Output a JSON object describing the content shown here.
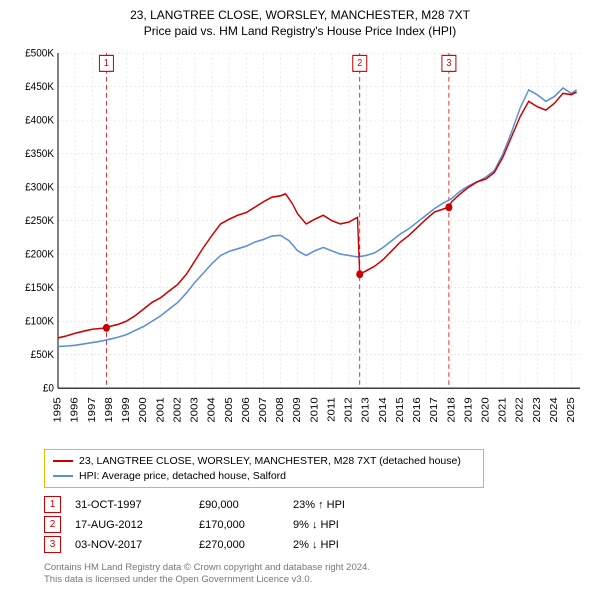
{
  "titles": {
    "line1": "23, LANGTREE CLOSE, WORSLEY, MANCHESTER, M28 7XT",
    "line2": "Price paid vs. HM Land Registry's House Price Index (HPI)"
  },
  "chart": {
    "type": "line",
    "background_color": "#ffffff",
    "grid_color": "#dcdcdc",
    "axis_color": "#000000",
    "label_color": "#000000",
    "font_size_axis": 10,
    "y": {
      "min": 0,
      "max": 500000,
      "step": 50000,
      "ticks": [
        "£0",
        "£50K",
        "£100K",
        "£150K",
        "£200K",
        "£250K",
        "£300K",
        "£350K",
        "£400K",
        "£450K",
        "£500K"
      ]
    },
    "x": {
      "min": 1995,
      "max": 2025.5,
      "step": 1,
      "ticks": [
        "1995",
        "1996",
        "1997",
        "1998",
        "1999",
        "2000",
        "2001",
        "2002",
        "2003",
        "2004",
        "2005",
        "2006",
        "2007",
        "2008",
        "2009",
        "2010",
        "2011",
        "2012",
        "2013",
        "2014",
        "2015",
        "2016",
        "2017",
        "2018",
        "2019",
        "2020",
        "2021",
        "2022",
        "2023",
        "2024",
        "2025"
      ]
    },
    "series": [
      {
        "id": "price_paid",
        "label": "23, LANGTREE CLOSE, WORSLEY, MANCHESTER, M28 7XT (detached house)",
        "color": "#cc0000",
        "line_width": 1.4,
        "points": [
          [
            1995.0,
            75000
          ],
          [
            1995.5,
            78000
          ],
          [
            1996.0,
            82000
          ],
          [
            1996.5,
            85000
          ],
          [
            1997.0,
            88000
          ],
          [
            1997.83,
            90000
          ],
          [
            1998.0,
            92000
          ],
          [
            1998.5,
            95000
          ],
          [
            1999.0,
            100000
          ],
          [
            1999.5,
            108000
          ],
          [
            2000.0,
            118000
          ],
          [
            2000.5,
            128000
          ],
          [
            2001.0,
            135000
          ],
          [
            2001.5,
            145000
          ],
          [
            2002.0,
            155000
          ],
          [
            2002.5,
            170000
          ],
          [
            2003.0,
            190000
          ],
          [
            2003.5,
            210000
          ],
          [
            2004.0,
            228000
          ],
          [
            2004.5,
            245000
          ],
          [
            2005.0,
            252000
          ],
          [
            2005.5,
            258000
          ],
          [
            2006.0,
            262000
          ],
          [
            2006.5,
            270000
          ],
          [
            2007.0,
            278000
          ],
          [
            2007.5,
            285000
          ],
          [
            2008.0,
            287000
          ],
          [
            2008.3,
            290000
          ],
          [
            2008.7,
            275000
          ],
          [
            2009.0,
            260000
          ],
          [
            2009.5,
            245000
          ],
          [
            2010.0,
            252000
          ],
          [
            2010.5,
            258000
          ],
          [
            2011.0,
            250000
          ],
          [
            2011.5,
            245000
          ],
          [
            2012.0,
            248000
          ],
          [
            2012.5,
            255000
          ],
          [
            2012.63,
            170000
          ],
          [
            2013.0,
            175000
          ],
          [
            2013.5,
            182000
          ],
          [
            2014.0,
            192000
          ],
          [
            2014.5,
            205000
          ],
          [
            2015.0,
            218000
          ],
          [
            2015.5,
            228000
          ],
          [
            2016.0,
            240000
          ],
          [
            2016.5,
            252000
          ],
          [
            2017.0,
            263000
          ],
          [
            2017.84,
            270000
          ],
          [
            2018.0,
            278000
          ],
          [
            2018.5,
            290000
          ],
          [
            2019.0,
            300000
          ],
          [
            2019.5,
            308000
          ],
          [
            2020.0,
            312000
          ],
          [
            2020.5,
            322000
          ],
          [
            2021.0,
            345000
          ],
          [
            2021.5,
            375000
          ],
          [
            2022.0,
            405000
          ],
          [
            2022.5,
            428000
          ],
          [
            2023.0,
            420000
          ],
          [
            2023.5,
            415000
          ],
          [
            2024.0,
            425000
          ],
          [
            2024.5,
            440000
          ],
          [
            2025.0,
            438000
          ],
          [
            2025.3,
            442000
          ]
        ]
      },
      {
        "id": "hpi",
        "label": "HPI: Average price, detached house, Salford",
        "color": "#5b8fd6",
        "line_width": 1.4,
        "points": [
          [
            1995.0,
            62000
          ],
          [
            1995.5,
            63000
          ],
          [
            1996.0,
            64000
          ],
          [
            1996.5,
            66000
          ],
          [
            1997.0,
            68000
          ],
          [
            1997.5,
            70000
          ],
          [
            1998.0,
            73000
          ],
          [
            1998.5,
            76000
          ],
          [
            1999.0,
            80000
          ],
          [
            1999.5,
            86000
          ],
          [
            2000.0,
            92000
          ],
          [
            2000.5,
            100000
          ],
          [
            2001.0,
            108000
          ],
          [
            2001.5,
            118000
          ],
          [
            2002.0,
            128000
          ],
          [
            2002.5,
            142000
          ],
          [
            2003.0,
            158000
          ],
          [
            2003.5,
            172000
          ],
          [
            2004.0,
            186000
          ],
          [
            2004.5,
            198000
          ],
          [
            2005.0,
            204000
          ],
          [
            2005.5,
            208000
          ],
          [
            2006.0,
            212000
          ],
          [
            2006.5,
            218000
          ],
          [
            2007.0,
            222000
          ],
          [
            2007.5,
            227000
          ],
          [
            2008.0,
            228000
          ],
          [
            2008.5,
            220000
          ],
          [
            2009.0,
            205000
          ],
          [
            2009.5,
            198000
          ],
          [
            2010.0,
            205000
          ],
          [
            2010.5,
            210000
          ],
          [
            2011.0,
            205000
          ],
          [
            2011.5,
            200000
          ],
          [
            2012.0,
            198000
          ],
          [
            2012.5,
            196000
          ],
          [
            2013.0,
            198000
          ],
          [
            2013.5,
            202000
          ],
          [
            2014.0,
            210000
          ],
          [
            2014.5,
            220000
          ],
          [
            2015.0,
            230000
          ],
          [
            2015.5,
            238000
          ],
          [
            2016.0,
            248000
          ],
          [
            2016.5,
            258000
          ],
          [
            2017.0,
            268000
          ],
          [
            2017.5,
            276000
          ],
          [
            2018.0,
            283000
          ],
          [
            2018.5,
            294000
          ],
          [
            2019.0,
            302000
          ],
          [
            2019.5,
            308000
          ],
          [
            2020.0,
            315000
          ],
          [
            2020.5,
            325000
          ],
          [
            2021.0,
            350000
          ],
          [
            2021.5,
            382000
          ],
          [
            2022.0,
            418000
          ],
          [
            2022.5,
            445000
          ],
          [
            2023.0,
            438000
          ],
          [
            2023.5,
            428000
          ],
          [
            2024.0,
            435000
          ],
          [
            2024.5,
            448000
          ],
          [
            2025.0,
            440000
          ],
          [
            2025.3,
            445000
          ]
        ]
      }
    ],
    "markers": [
      {
        "n": "1",
        "year": 1997.83,
        "price": 90000
      },
      {
        "n": "2",
        "year": 2012.63,
        "price": 170000
      },
      {
        "n": "3",
        "year": 2017.84,
        "price": 270000
      }
    ],
    "marker_color": "#cc0000"
  },
  "legend": {
    "border_color": "#f8b400",
    "items": [
      {
        "label": "23, LANGTREE CLOSE, WORSLEY, MANCHESTER, M28 7XT (detached house)",
        "color": "#cc0000"
      },
      {
        "label": "HPI: Average price, detached house, Salford",
        "color": "#5b8fd6"
      }
    ]
  },
  "events": [
    {
      "n": "1",
      "date": "31-OCT-1997",
      "price": "£90,000",
      "delta": "23% ↑ HPI"
    },
    {
      "n": "2",
      "date": "17-AUG-2012",
      "price": "£170,000",
      "delta": "9% ↓ HPI"
    },
    {
      "n": "3",
      "date": "03-NOV-2017",
      "price": "£270,000",
      "delta": "2% ↓ HPI"
    }
  ],
  "attribution": {
    "line1": "Contains HM Land Registry data © Crown copyright and database right 2024.",
    "line2": "This data is licensed under the Open Government Licence v3.0."
  }
}
